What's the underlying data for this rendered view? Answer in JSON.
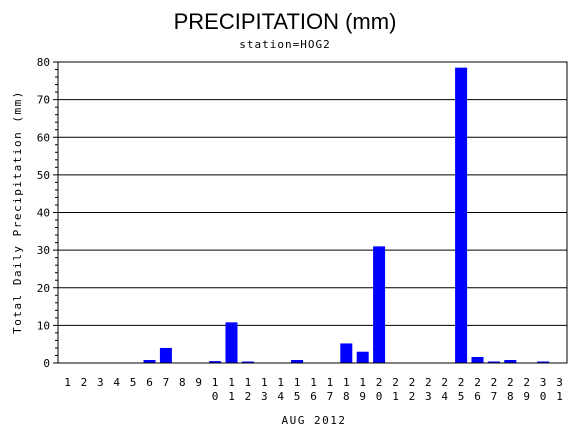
{
  "chart_data": {
    "type": "bar",
    "title": "PRECIPITATION (mm)",
    "subtitle": "station=HOG2",
    "xlabel": "AUG 2012",
    "ylabel": "Total Daily Precipitation (mm)",
    "ylim": [
      0,
      80
    ],
    "yticks": [
      "0",
      "10",
      "20",
      "30",
      "40",
      "50",
      "60",
      "70",
      "80"
    ],
    "grid": true,
    "bar_color": "#0000ff",
    "categories": [
      "1",
      "2",
      "3",
      "4",
      "5",
      "6",
      "7",
      "8",
      "9",
      "10",
      "11",
      "12",
      "13",
      "14",
      "15",
      "16",
      "17",
      "18",
      "19",
      "20",
      "21",
      "22",
      "23",
      "24",
      "25",
      "26",
      "27",
      "28",
      "29",
      "30",
      "31"
    ],
    "values": [
      0,
      0,
      0,
      0,
      0,
      0.8,
      4.0,
      0,
      0,
      0.5,
      10.8,
      0.3,
      0,
      0,
      0.8,
      0,
      0,
      5.2,
      3.0,
      31.0,
      0,
      0,
      0,
      0,
      78.5,
      1.6,
      0.3,
      0.8,
      0,
      0.3,
      0
    ]
  }
}
